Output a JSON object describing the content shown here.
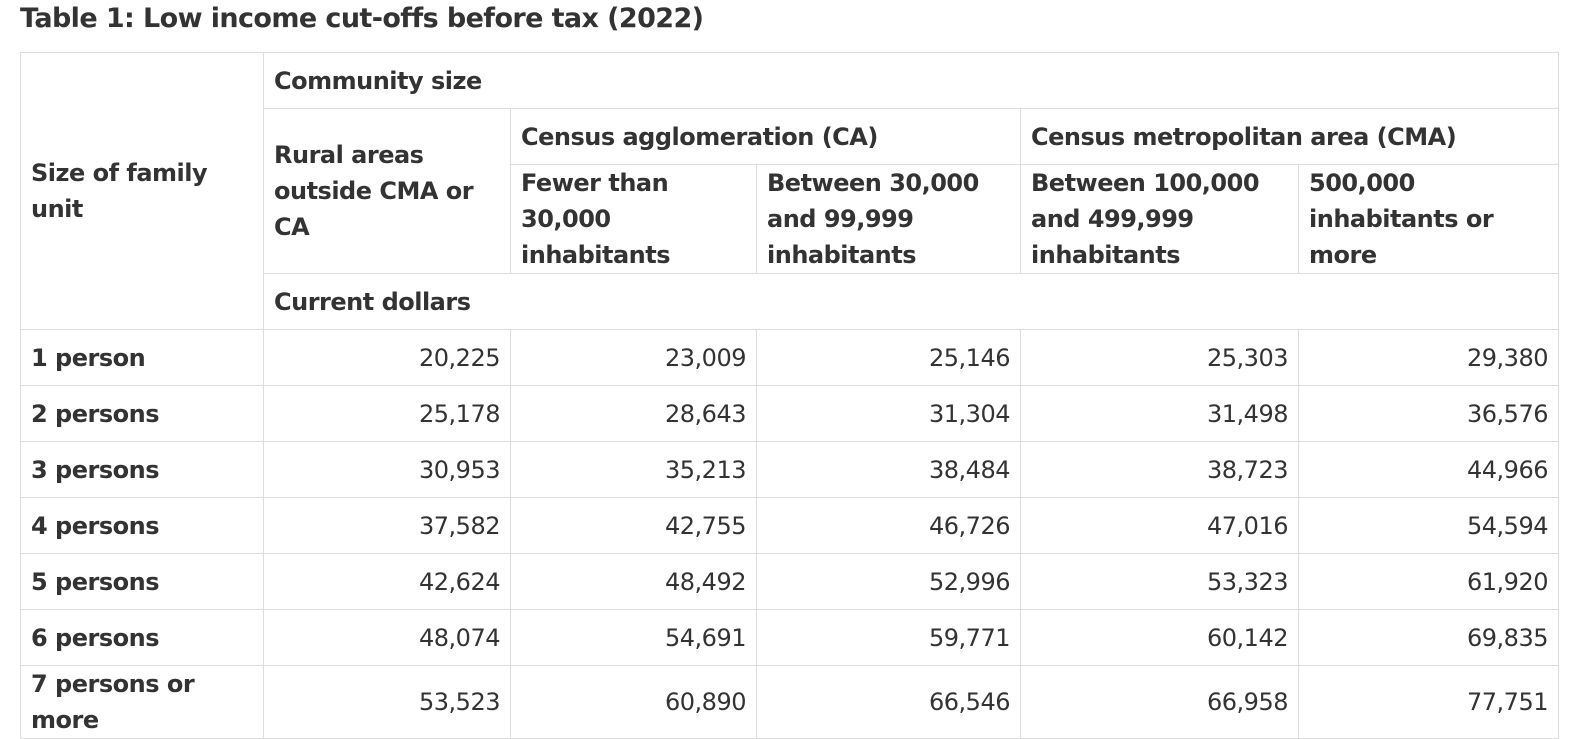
{
  "caption": "Table 1: Low income cut-offs before tax (2022)",
  "header": {
    "family_unit": "Size of family unit",
    "community_size": "Community size",
    "rural": "Rural areas outside CMA or CA",
    "ca": "Census agglomeration (CA)",
    "cma": "Census metropolitan area (CMA)",
    "ca_small": "Fewer than 30,000 inhabitants",
    "ca_large": "Between 30,000 and 99,999 inhabitants",
    "cma_small": "Between 100,000 and 499,999 inhabitants",
    "cma_large": "500,000 inhabitants or more",
    "unit": "Current dollars"
  },
  "rows": [
    {
      "label": "1 person",
      "values": [
        "20,225",
        "23,009",
        "25,146",
        "25,303",
        "29,380"
      ]
    },
    {
      "label": "2 persons",
      "values": [
        "25,178",
        "28,643",
        "31,304",
        "31,498",
        "36,576"
      ]
    },
    {
      "label": "3 persons",
      "values": [
        "30,953",
        "35,213",
        "38,484",
        "38,723",
        "44,966"
      ]
    },
    {
      "label": "4 persons",
      "values": [
        "37,582",
        "42,755",
        "46,726",
        "47,016",
        "54,594"
      ]
    },
    {
      "label": "5 persons",
      "values": [
        "42,624",
        "48,492",
        "52,996",
        "53,323",
        "61,920"
      ]
    },
    {
      "label": "6 persons",
      "values": [
        "48,074",
        "54,691",
        "59,771",
        "60,142",
        "69,835"
      ]
    },
    {
      "label": "7 persons or more",
      "values": [
        "53,523",
        "60,890",
        "66,546",
        "66,958",
        "77,751"
      ]
    }
  ]
}
